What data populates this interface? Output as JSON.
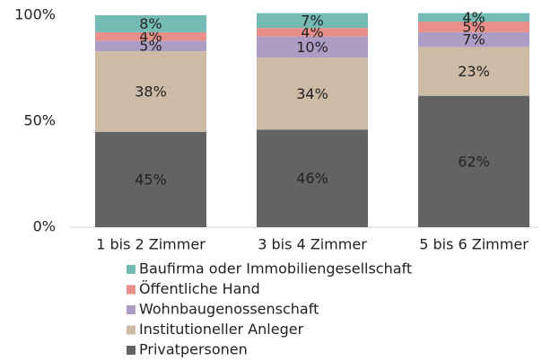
{
  "chart_data": {
    "type": "stacked_bar",
    "categories": [
      "1 bis 2 Zimmer",
      "3 bis 4 Zimmer",
      "5 bis 6 Zimmer"
    ],
    "series": [
      {
        "name": "Privatpersonen",
        "color": "#636363",
        "values": [
          45,
          46,
          62
        ],
        "value_labels": [
          "45%",
          "46%",
          "62%"
        ]
      },
      {
        "name": "Institutioneller Anleger",
        "color": "#cdbba6",
        "values": [
          38,
          34,
          23
        ],
        "value_labels": [
          "38%",
          "34%",
          "23%"
        ]
      },
      {
        "name": "Wohnbaugenossenschaft",
        "color": "#ad9dc4",
        "values": [
          5,
          10,
          7
        ],
        "value_labels": [
          "5%",
          "10%",
          "7%"
        ]
      },
      {
        "name": "Öffentliche Hand",
        "color": "#e88f8a",
        "values": [
          4,
          4,
          5
        ],
        "value_labels": [
          "4%",
          "4%",
          "5%"
        ]
      },
      {
        "name": "Baufirma oder Immobiliengesellschaft",
        "color": "#74bbb5",
        "values": [
          8,
          7,
          4
        ],
        "value_labels": [
          "8%",
          "7%",
          "4%"
        ]
      }
    ],
    "ylim": [
      0,
      100
    ],
    "yticks": [
      {
        "value": 0,
        "label": "0%"
      },
      {
        "value": 50,
        "label": "50%"
      },
      {
        "value": 100,
        "label": "100%"
      }
    ]
  }
}
